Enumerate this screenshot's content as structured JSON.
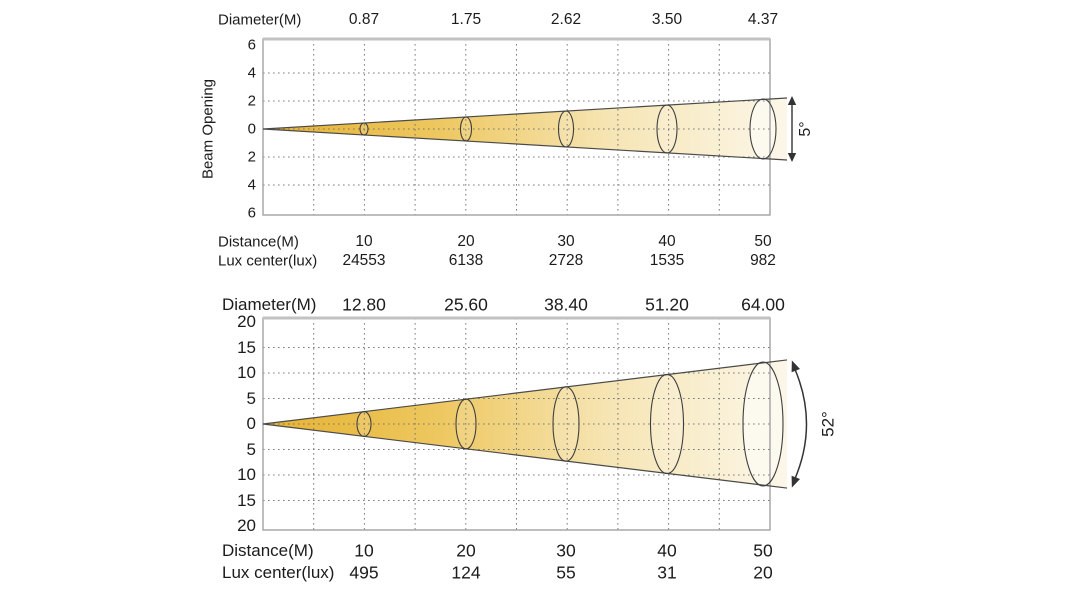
{
  "colors": {
    "beam_gradient": [
      "#E6B232",
      "#EDC75F",
      "#F6E5B4",
      "#FBF6E7"
    ],
    "beam_end_fill": "#FCF9EE",
    "grid": "#6f6f6f",
    "plot_border": "#a3a3a3",
    "plot_border_top": "#c2c2c2",
    "beam_outline": "#4a4a4a",
    "ellipse_outline": "#3f3f3f",
    "arrow": "#333333",
    "text": "#1c1c1c"
  },
  "chart_data": [
    {
      "type": "beam-profile-cone",
      "beam_angle_deg": 5,
      "beam_angle_label": "5°",
      "ylabel": "Beam Opening",
      "grid": "dotted",
      "x_range_m": [
        0,
        50
      ],
      "y_ticks": [
        "6",
        "4",
        "2",
        "0",
        "2",
        "4",
        "6"
      ],
      "y_abs_max": 6,
      "rows": {
        "diameter": {
          "label": "Diameter(M)",
          "values": [
            "0.87",
            "1.75",
            "2.62",
            "3.50",
            "4.37"
          ]
        },
        "distance": {
          "label": "Distance(M)",
          "values": [
            "10",
            "20",
            "30",
            "40",
            "50"
          ]
        },
        "lux": {
          "label": "Lux center(lux)",
          "values": [
            "24553",
            "6138",
            "2728",
            "1535",
            "982"
          ]
        }
      },
      "distances_m": [
        10,
        20,
        30,
        40,
        50
      ],
      "diameters_m": [
        0.87,
        1.75,
        2.62,
        3.5,
        4.37
      ],
      "lux_center_lux": [
        24553,
        6138,
        2728,
        1535,
        982
      ]
    },
    {
      "type": "beam-profile-cone",
      "beam_angle_deg": 52,
      "beam_angle_label": "52°",
      "ylabel": "",
      "grid": "dotted",
      "x_range_m": [
        0,
        50
      ],
      "y_ticks": [
        "20",
        "15",
        "10",
        "5",
        "0",
        "5",
        "10",
        "15",
        "20"
      ],
      "y_abs_max": 20,
      "rows": {
        "diameter": {
          "label": "Diameter(M)",
          "values": [
            "12.80",
            "25.60",
            "38.40",
            "51.20",
            "64.00"
          ]
        },
        "distance": {
          "label": "Distance(M)",
          "values": [
            "10",
            "20",
            "30",
            "40",
            "50"
          ]
        },
        "lux": {
          "label": "Lux center(lux)",
          "values": [
            "495",
            "124",
            "55",
            "31",
            "20"
          ]
        }
      },
      "distances_m": [
        10,
        20,
        30,
        40,
        50
      ],
      "diameters_m": [
        12.8,
        25.6,
        38.4,
        51.2,
        64.0
      ],
      "lux_center_lux": [
        495,
        124,
        55,
        31,
        20
      ]
    }
  ]
}
